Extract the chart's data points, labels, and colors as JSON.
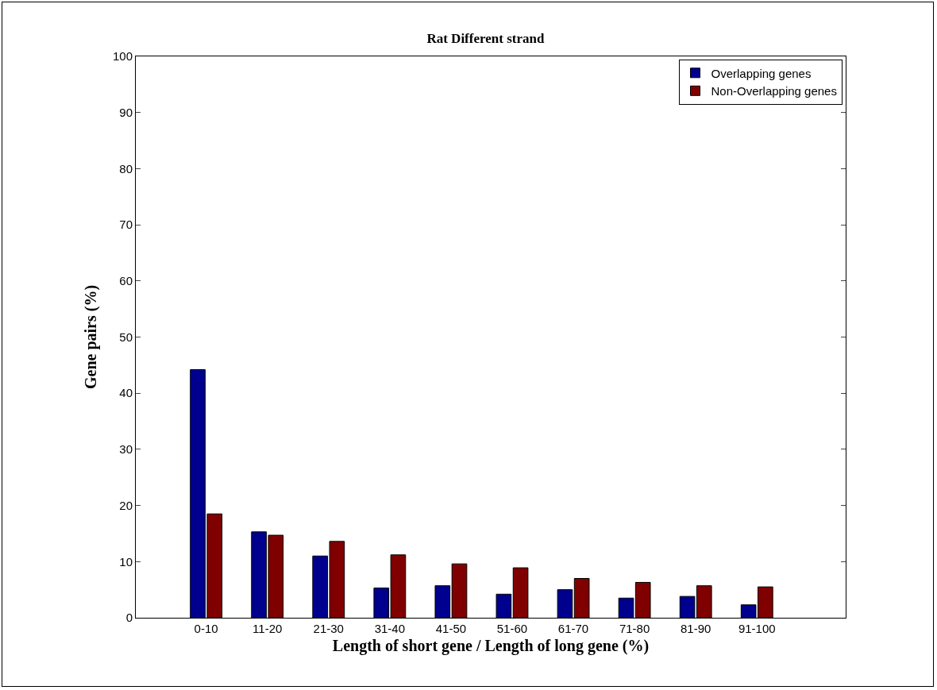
{
  "chart_data": {
    "type": "bar",
    "title": "Rat Different strand",
    "xlabel": "Length of short gene / Length of long gene (%)",
    "ylabel": "Gene pairs (%)",
    "categories": [
      "0-10",
      "11-20",
      "21-30",
      "31-40",
      "41-50",
      "51-60",
      "61-70",
      "71-80",
      "81-90",
      "91-100"
    ],
    "series": [
      {
        "name": "Overlapping genes",
        "color": "#00008f",
        "values": [
          44.2,
          15.3,
          11.0,
          5.3,
          5.7,
          4.2,
          5.0,
          3.5,
          3.8,
          2.3
        ]
      },
      {
        "name": "Non-Overlapping genes",
        "color": "#800000",
        "values": [
          18.5,
          14.7,
          13.6,
          11.2,
          9.6,
          8.9,
          7.0,
          6.3,
          5.7,
          5.5
        ]
      }
    ],
    "ylim": [
      0,
      100
    ],
    "yticks": [
      0,
      10,
      20,
      30,
      40,
      50,
      60,
      70,
      80,
      90,
      100
    ],
    "grid": false,
    "legend": "top right"
  }
}
